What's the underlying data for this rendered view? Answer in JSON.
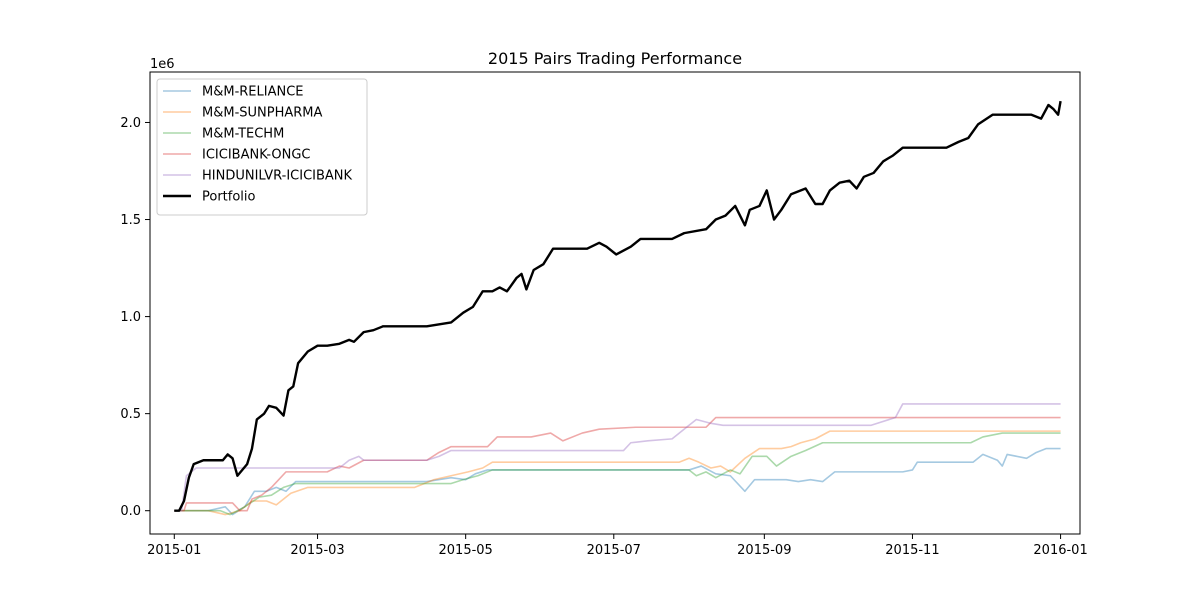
{
  "chart_data": {
    "type": "line",
    "title": "2015 Pairs Trading Performance",
    "xlabel": "",
    "ylabel": "",
    "y_offset_label": "1e6",
    "x_ticks": [
      "2015-01",
      "2015-03",
      "2015-05",
      "2015-07",
      "2015-09",
      "2015-11",
      "2016-01"
    ],
    "y_ticks": [
      "0.0",
      "0.5",
      "1.0",
      "1.5",
      "2.0"
    ],
    "y_tick_values": [
      0,
      0.5,
      1.0,
      1.5,
      2.0
    ],
    "ylim": [
      -0.12,
      2.26
    ],
    "xlim": [
      "2014-12-22",
      "2016-01-09"
    ],
    "legend_position": "upper left",
    "grid": false,
    "series": [
      {
        "name": "M&M-RELIANCE",
        "color": "#1f77b4",
        "opacity": 0.4,
        "linewidth": 1.6,
        "points": [
          [
            "2015-01-01",
            0.0
          ],
          [
            "2015-01-05",
            0.0
          ],
          [
            "2015-01-15",
            0.0
          ],
          [
            "2015-01-22",
            0.02
          ],
          [
            "2015-01-25",
            -0.02
          ],
          [
            "2015-01-30",
            0.02
          ],
          [
            "2015-02-03",
            0.1
          ],
          [
            "2015-02-08",
            0.1
          ],
          [
            "2015-02-12",
            0.12
          ],
          [
            "2015-02-16",
            0.1
          ],
          [
            "2015-02-20",
            0.15
          ],
          [
            "2015-02-25",
            0.15
          ],
          [
            "2015-03-05",
            0.15
          ],
          [
            "2015-04-15",
            0.15
          ],
          [
            "2015-04-25",
            0.17
          ],
          [
            "2015-05-01",
            0.16
          ],
          [
            "2015-05-05",
            0.19
          ],
          [
            "2015-05-10",
            0.21
          ],
          [
            "2015-06-01",
            0.21
          ],
          [
            "2015-07-01",
            0.21
          ],
          [
            "2015-08-01",
            0.21
          ],
          [
            "2015-08-06",
            0.23
          ],
          [
            "2015-08-12",
            0.19
          ],
          [
            "2015-08-18",
            0.18
          ],
          [
            "2015-08-24",
            0.1
          ],
          [
            "2015-08-28",
            0.16
          ],
          [
            "2015-09-10",
            0.16
          ],
          [
            "2015-09-15",
            0.15
          ],
          [
            "2015-09-20",
            0.16
          ],
          [
            "2015-09-25",
            0.15
          ],
          [
            "2015-09-30",
            0.2
          ],
          [
            "2015-10-15",
            0.2
          ],
          [
            "2015-10-28",
            0.2
          ],
          [
            "2015-11-01",
            0.21
          ],
          [
            "2015-11-03",
            0.25
          ],
          [
            "2015-11-20",
            0.25
          ],
          [
            "2015-11-26",
            0.25
          ],
          [
            "2015-11-30",
            0.29
          ],
          [
            "2015-12-06",
            0.26
          ],
          [
            "2015-12-08",
            0.23
          ],
          [
            "2015-12-10",
            0.29
          ],
          [
            "2015-12-18",
            0.27
          ],
          [
            "2015-12-22",
            0.3
          ],
          [
            "2015-12-26",
            0.32
          ],
          [
            "2016-01-01",
            0.32
          ]
        ]
      },
      {
        "name": "M&M-SUNPHARMA",
        "color": "#ff7f0e",
        "opacity": 0.4,
        "linewidth": 1.6,
        "points": [
          [
            "2015-01-01",
            0.0
          ],
          [
            "2015-01-15",
            0.0
          ],
          [
            "2015-01-22",
            -0.02
          ],
          [
            "2015-01-28",
            0.0
          ],
          [
            "2015-02-02",
            0.05
          ],
          [
            "2015-02-08",
            0.05
          ],
          [
            "2015-02-12",
            0.03
          ],
          [
            "2015-02-18",
            0.09
          ],
          [
            "2015-02-25",
            0.12
          ],
          [
            "2015-03-05",
            0.12
          ],
          [
            "2015-04-10",
            0.12
          ],
          [
            "2015-04-18",
            0.16
          ],
          [
            "2015-04-25",
            0.18
          ],
          [
            "2015-05-02",
            0.2
          ],
          [
            "2015-05-08",
            0.22
          ],
          [
            "2015-05-12",
            0.25
          ],
          [
            "2015-06-01",
            0.25
          ],
          [
            "2015-07-01",
            0.25
          ],
          [
            "2015-07-28",
            0.25
          ],
          [
            "2015-08-01",
            0.27
          ],
          [
            "2015-08-05",
            0.25
          ],
          [
            "2015-08-10",
            0.22
          ],
          [
            "2015-08-14",
            0.23
          ],
          [
            "2015-08-18",
            0.2
          ],
          [
            "2015-08-24",
            0.27
          ],
          [
            "2015-08-30",
            0.32
          ],
          [
            "2015-09-08",
            0.32
          ],
          [
            "2015-09-12",
            0.33
          ],
          [
            "2015-09-16",
            0.35
          ],
          [
            "2015-09-22",
            0.37
          ],
          [
            "2015-09-28",
            0.41
          ],
          [
            "2015-10-20",
            0.41
          ],
          [
            "2015-11-15",
            0.41
          ],
          [
            "2015-12-20",
            0.41
          ],
          [
            "2016-01-01",
            0.41
          ]
        ]
      },
      {
        "name": "M&M-TECHM",
        "color": "#2ca02c",
        "opacity": 0.4,
        "linewidth": 1.6,
        "points": [
          [
            "2015-01-01",
            0.0
          ],
          [
            "2015-01-20",
            0.0
          ],
          [
            "2015-01-24",
            -0.02
          ],
          [
            "2015-01-30",
            0.02
          ],
          [
            "2015-02-05",
            0.07
          ],
          [
            "2015-02-10",
            0.08
          ],
          [
            "2015-02-15",
            0.12
          ],
          [
            "2015-02-20",
            0.14
          ],
          [
            "2015-03-05",
            0.14
          ],
          [
            "2015-04-25",
            0.14
          ],
          [
            "2015-04-30",
            0.16
          ],
          [
            "2015-05-06",
            0.18
          ],
          [
            "2015-05-12",
            0.21
          ],
          [
            "2015-06-15",
            0.21
          ],
          [
            "2015-07-25",
            0.21
          ],
          [
            "2015-08-01",
            0.21
          ],
          [
            "2015-08-04",
            0.18
          ],
          [
            "2015-08-08",
            0.2
          ],
          [
            "2015-08-12",
            0.17
          ],
          [
            "2015-08-18",
            0.21
          ],
          [
            "2015-08-22",
            0.19
          ],
          [
            "2015-08-27",
            0.28
          ],
          [
            "2015-09-02",
            0.28
          ],
          [
            "2015-09-06",
            0.23
          ],
          [
            "2015-09-12",
            0.28
          ],
          [
            "2015-09-18",
            0.31
          ],
          [
            "2015-09-25",
            0.35
          ],
          [
            "2015-10-10",
            0.35
          ],
          [
            "2015-11-10",
            0.35
          ],
          [
            "2015-11-25",
            0.35
          ],
          [
            "2015-11-30",
            0.38
          ],
          [
            "2015-12-08",
            0.4
          ],
          [
            "2016-01-01",
            0.4
          ]
        ]
      },
      {
        "name": "ICICIBANK-ONGC",
        "color": "#d62728",
        "opacity": 0.4,
        "linewidth": 1.6,
        "points": [
          [
            "2015-01-01",
            0.0
          ],
          [
            "2015-01-05",
            0.0
          ],
          [
            "2015-01-06",
            0.04
          ],
          [
            "2015-01-25",
            0.04
          ],
          [
            "2015-01-28",
            0.0
          ],
          [
            "2015-01-31",
            0.0
          ],
          [
            "2015-02-02",
            0.06
          ],
          [
            "2015-02-06",
            0.08
          ],
          [
            "2015-02-10",
            0.12
          ],
          [
            "2015-02-13",
            0.16
          ],
          [
            "2015-02-16",
            0.2
          ],
          [
            "2015-03-05",
            0.2
          ],
          [
            "2015-03-10",
            0.23
          ],
          [
            "2015-03-14",
            0.22
          ],
          [
            "2015-03-20",
            0.26
          ],
          [
            "2015-04-15",
            0.26
          ],
          [
            "2015-04-20",
            0.3
          ],
          [
            "2015-04-25",
            0.33
          ],
          [
            "2015-05-10",
            0.33
          ],
          [
            "2015-05-14",
            0.38
          ],
          [
            "2015-05-28",
            0.38
          ],
          [
            "2015-06-05",
            0.4
          ],
          [
            "2015-06-10",
            0.36
          ],
          [
            "2015-06-18",
            0.4
          ],
          [
            "2015-06-25",
            0.42
          ],
          [
            "2015-07-10",
            0.43
          ],
          [
            "2015-08-08",
            0.43
          ],
          [
            "2015-08-12",
            0.48
          ],
          [
            "2015-08-20",
            0.48
          ],
          [
            "2015-08-25",
            0.48
          ],
          [
            "2015-09-15",
            0.48
          ],
          [
            "2015-12-01",
            0.48
          ],
          [
            "2016-01-01",
            0.48
          ]
        ]
      },
      {
        "name": "HINDUNILVR-ICICIBANK",
        "color": "#9467bd",
        "opacity": 0.4,
        "linewidth": 1.6,
        "points": [
          [
            "2015-01-01",
            0.0
          ],
          [
            "2015-01-04",
            0.0
          ],
          [
            "2015-01-06",
            0.18
          ],
          [
            "2015-01-10",
            0.22
          ],
          [
            "2015-01-25",
            0.22
          ],
          [
            "2015-02-20",
            0.22
          ],
          [
            "2015-03-10",
            0.22
          ],
          [
            "2015-03-14",
            0.26
          ],
          [
            "2015-03-18",
            0.28
          ],
          [
            "2015-03-20",
            0.26
          ],
          [
            "2015-04-15",
            0.26
          ],
          [
            "2015-04-20",
            0.28
          ],
          [
            "2015-04-25",
            0.31
          ],
          [
            "2015-05-20",
            0.31
          ],
          [
            "2015-06-15",
            0.31
          ],
          [
            "2015-07-05",
            0.31
          ],
          [
            "2015-07-08",
            0.35
          ],
          [
            "2015-07-15",
            0.36
          ],
          [
            "2015-07-25",
            0.37
          ],
          [
            "2015-08-01",
            0.44
          ],
          [
            "2015-08-04",
            0.47
          ],
          [
            "2015-08-10",
            0.45
          ],
          [
            "2015-08-15",
            0.44
          ],
          [
            "2015-09-01",
            0.44
          ],
          [
            "2015-10-15",
            0.44
          ],
          [
            "2015-10-25",
            0.48
          ],
          [
            "2015-10-28",
            0.55
          ],
          [
            "2015-11-15",
            0.55
          ],
          [
            "2016-01-01",
            0.55
          ]
        ]
      },
      {
        "name": "Portfolio",
        "color": "#000000",
        "opacity": 1.0,
        "linewidth": 2.4,
        "points": [
          [
            "2015-01-01",
            0.0
          ],
          [
            "2015-01-03",
            0.0
          ],
          [
            "2015-01-05",
            0.05
          ],
          [
            "2015-01-07",
            0.17
          ],
          [
            "2015-01-09",
            0.24
          ],
          [
            "2015-01-13",
            0.26
          ],
          [
            "2015-01-21",
            0.26
          ],
          [
            "2015-01-23",
            0.29
          ],
          [
            "2015-01-25",
            0.27
          ],
          [
            "2015-01-27",
            0.18
          ],
          [
            "2015-01-31",
            0.24
          ],
          [
            "2015-02-02",
            0.32
          ],
          [
            "2015-02-04",
            0.47
          ],
          [
            "2015-02-07",
            0.5
          ],
          [
            "2015-02-09",
            0.54
          ],
          [
            "2015-02-12",
            0.53
          ],
          [
            "2015-02-15",
            0.49
          ],
          [
            "2015-02-17",
            0.62
          ],
          [
            "2015-02-19",
            0.64
          ],
          [
            "2015-02-21",
            0.76
          ],
          [
            "2015-02-25",
            0.82
          ],
          [
            "2015-03-01",
            0.85
          ],
          [
            "2015-03-05",
            0.85
          ],
          [
            "2015-03-10",
            0.86
          ],
          [
            "2015-03-14",
            0.88
          ],
          [
            "2015-03-16",
            0.87
          ],
          [
            "2015-03-20",
            0.92
          ],
          [
            "2015-03-24",
            0.93
          ],
          [
            "2015-03-28",
            0.95
          ],
          [
            "2015-04-15",
            0.95
          ],
          [
            "2015-04-25",
            0.97
          ],
          [
            "2015-04-30",
            1.02
          ],
          [
            "2015-05-04",
            1.05
          ],
          [
            "2015-05-08",
            1.13
          ],
          [
            "2015-05-12",
            1.13
          ],
          [
            "2015-05-15",
            1.15
          ],
          [
            "2015-05-18",
            1.13
          ],
          [
            "2015-05-22",
            1.2
          ],
          [
            "2015-05-24",
            1.22
          ],
          [
            "2015-05-26",
            1.14
          ],
          [
            "2015-05-29",
            1.24
          ],
          [
            "2015-06-02",
            1.27
          ],
          [
            "2015-06-06",
            1.35
          ],
          [
            "2015-06-20",
            1.35
          ],
          [
            "2015-06-25",
            1.38
          ],
          [
            "2015-06-28",
            1.36
          ],
          [
            "2015-07-02",
            1.32
          ],
          [
            "2015-07-08",
            1.36
          ],
          [
            "2015-07-12",
            1.4
          ],
          [
            "2015-07-25",
            1.4
          ],
          [
            "2015-07-30",
            1.43
          ],
          [
            "2015-08-08",
            1.45
          ],
          [
            "2015-08-12",
            1.5
          ],
          [
            "2015-08-16",
            1.52
          ],
          [
            "2015-08-20",
            1.57
          ],
          [
            "2015-08-24",
            1.47
          ],
          [
            "2015-08-26",
            1.55
          ],
          [
            "2015-08-30",
            1.57
          ],
          [
            "2015-09-02",
            1.65
          ],
          [
            "2015-09-05",
            1.5
          ],
          [
            "2015-09-08",
            1.55
          ],
          [
            "2015-09-12",
            1.63
          ],
          [
            "2015-09-18",
            1.66
          ],
          [
            "2015-09-22",
            1.58
          ],
          [
            "2015-09-25",
            1.58
          ],
          [
            "2015-09-28",
            1.65
          ],
          [
            "2015-10-02",
            1.69
          ],
          [
            "2015-10-06",
            1.7
          ],
          [
            "2015-10-09",
            1.66
          ],
          [
            "2015-10-12",
            1.72
          ],
          [
            "2015-10-16",
            1.74
          ],
          [
            "2015-10-20",
            1.8
          ],
          [
            "2015-10-24",
            1.83
          ],
          [
            "2015-10-28",
            1.87
          ],
          [
            "2015-11-05",
            1.87
          ],
          [
            "2015-11-15",
            1.87
          ],
          [
            "2015-11-20",
            1.9
          ],
          [
            "2015-11-24",
            1.92
          ],
          [
            "2015-11-28",
            1.99
          ],
          [
            "2015-12-04",
            2.04
          ],
          [
            "2015-12-15",
            2.04
          ],
          [
            "2015-12-20",
            2.04
          ],
          [
            "2015-12-24",
            2.02
          ],
          [
            "2015-12-27",
            2.09
          ],
          [
            "2015-12-29",
            2.07
          ],
          [
            "2015-12-31",
            2.04
          ],
          [
            "2016-01-01",
            2.11
          ]
        ]
      }
    ]
  }
}
